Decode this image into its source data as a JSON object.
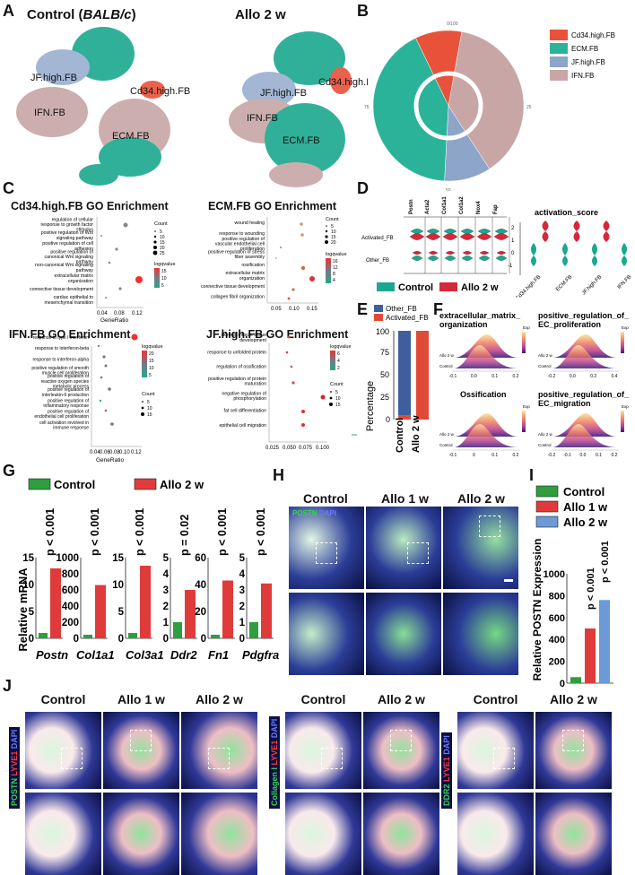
{
  "panels": {
    "A": {
      "label": "A",
      "control_title": "Control (BALB/c)",
      "allo_title": "Allo 2 w",
      "clusters": [
        "JF.high.FB",
        "Cd34.high.FB",
        "IFN.FB",
        "ECM.FB"
      ]
    },
    "B": {
      "label": "B",
      "legend": [
        "Cd34.high.FB",
        "ECM.FB",
        "JF.high.FB",
        "IFN.FB"
      ],
      "colors": [
        "#e8523a",
        "#2bb39a",
        "#8ca5c9",
        "#c8a6a6"
      ],
      "ticks": [
        "0/100",
        "25",
        "50",
        "75"
      ]
    },
    "C": {
      "label": "C",
      "cd34": {
        "title": "Cd34.high.FB GO Enrichment",
        "terms": [
          "regulation of cellular response to growth factor stimulus",
          "positive regulation of Wnt signaling pathway",
          "positive regulation of cell adhesion",
          "positive regulation of canonical Wnt signaling pathway",
          "non-canonical Wnt signaling pathway",
          "extracellular matrix organization",
          "connective tissue development",
          "cardiac epithelial to mesenchymal transition"
        ],
        "xticks": [
          "0.04",
          "0.08",
          "0.12"
        ],
        "xlabel": "GeneRatio",
        "count_title": "Count",
        "counts": [
          "5",
          "10",
          "15",
          "20",
          "25"
        ],
        "lq_title": "logqvalue",
        "lq": [
          "15",
          "10",
          "5"
        ]
      },
      "ecm": {
        "title": "ECM.FB GO Enrichment",
        "terms": [
          "wound healing",
          "response to wounding",
          "positive regulation of vascular endothelial cell proliferation",
          "positive regulation of stress fiber assembly",
          "ossification",
          "extracellular matrix organization",
          "connective tissue development",
          "collagen fibril organization"
        ],
        "xticks": [
          "0.05",
          "0.10",
          "0.15"
        ],
        "count_title": "Count",
        "counts": [
          "5",
          "10",
          "15",
          "20"
        ],
        "lq_title": "logqvalue",
        "lq": [
          "16",
          "12",
          "8",
          "4"
        ]
      },
      "ifn": {
        "title": "IFN.FB GO Enrichment",
        "terms": [
          "response to type I interferon",
          "response to interferon-beta",
          "response to interferon-alpha",
          "positive regulation of smooth muscle cell proliferation",
          "positive regulation of reactive oxygen species metabolic process",
          "positive regulation of interleukin-6 production",
          "positive regulation of inflammatory response",
          "positive regulation of endothelial cell proliferation",
          "cell activation involved in immune response"
        ],
        "xticks": [
          "0.04",
          "0.06",
          "0.08",
          "0.10",
          "0.12"
        ],
        "xlabel": "GeneRatio",
        "lq_title": "logqvalue",
        "lq": [
          "20",
          "15",
          "10",
          "5"
        ],
        "count_title": "Count",
        "counts": [
          "5",
          "10",
          "15"
        ]
      },
      "jf": {
        "title": "JF.high.FB GO Enrichment",
        "terms": [
          "skeletal muscle tissue development",
          "response to unfolded protein",
          "regulation of ossification",
          "positive regulation of protein maturation",
          "negative regulation of phosphorylation",
          "fat cell differentiation",
          "epithelial cell migration"
        ],
        "xticks": [
          "0.025",
          "0.050",
          "0.075",
          "0.100"
        ],
        "lq_title": "logqvalue",
        "lq": [
          "6",
          "4",
          "2"
        ],
        "count_title": "Count",
        "counts": [
          "5",
          "10",
          "15"
        ]
      }
    },
    "D": {
      "label": "D",
      "genes": [
        "Postn",
        "Acta2",
        "Col1a1",
        "Col1a2",
        "Nox4",
        "Fap"
      ],
      "rows": [
        "Activated_FB",
        "Other_FB"
      ],
      "score_title": "activation_score",
      "score_y": [
        "2",
        "1",
        "0",
        "-1"
      ],
      "score_x": [
        "Cd34.high.FB",
        "ECM.FB",
        "JF.high.FB",
        "IFN.FB"
      ],
      "legend": [
        "Control",
        "Allo 2 w"
      ]
    },
    "E": {
      "label": "E",
      "legend": [
        "Other_FB",
        "Activated_FB"
      ],
      "ylabel": "Percentage",
      "yticks": [
        "100",
        "75",
        "50",
        "25",
        "0"
      ],
      "x": [
        "Control",
        "Allo 2 w"
      ],
      "chart_data": {
        "type": "bar",
        "categories": [
          "Control",
          "Allo 2 w"
        ],
        "series": [
          {
            "name": "Other_FB",
            "values": [
              95,
              0
            ]
          },
          {
            "name": "Activated_FB",
            "values": [
              5,
              100
            ]
          }
        ],
        "ylabel": "Percentage",
        "ylim": [
          0,
          100
        ]
      }
    },
    "F": {
      "label": "F",
      "titles": [
        "extracellular_matrix_organization",
        "positive_regulation_of_EC_proliferation",
        "Ossification",
        "positive_regulation_of_EC_migration"
      ],
      "rows": [
        "Allo 2 w",
        "Control"
      ],
      "xticks_a": [
        "-0.1",
        "0.0",
        "0.1",
        "0.2"
      ],
      "xticks_b": [
        "-0.2",
        "0.0",
        "0.2",
        "0.4"
      ],
      "xticks_c": [
        "-0.1",
        "0",
        "0.1",
        "0.2"
      ],
      "xticks_d": [
        "-0.2",
        "-0.1",
        "0.0",
        "0.1",
        "0.2"
      ],
      "legend_title": "Exp"
    },
    "G": {
      "label": "G",
      "legend": [
        "Control",
        "Allo 2 w"
      ],
      "ylabel": "Relative mRNA",
      "genes": [
        "Postn",
        "Col1a1",
        "Col3a1",
        "Ddr2",
        "Fn1",
        "Pdgfra"
      ],
      "pvals": [
        "p < 0.001",
        "p < 0.001",
        "p < 0.001",
        "p = 0.02",
        "p < 0.001",
        "p < 0.001"
      ],
      "yticks": [
        [
          "15",
          "10",
          "5",
          "0"
        ],
        [
          "1000",
          "800",
          "600",
          "400",
          "200",
          "0"
        ],
        [
          "15",
          "10",
          "5",
          "0"
        ],
        [
          "5",
          "4",
          "3",
          "2",
          "1",
          "0"
        ],
        [
          "60",
          "40",
          "20",
          "0"
        ],
        [
          "5",
          "4",
          "3",
          "2",
          "1",
          "0"
        ]
      ],
      "chart_data": {
        "type": "bar",
        "categories": [
          "Postn",
          "Col1a1",
          "Col3a1",
          "Ddr2",
          "Fn1",
          "Pdgfra"
        ],
        "series": [
          {
            "name": "Control",
            "values": [
              1,
              1,
              1,
              1,
              1,
              1
            ]
          },
          {
            "name": "Allo 2 w",
            "values": [
              13,
              660,
              13.5,
              3,
              43,
              3.4
            ]
          }
        ],
        "ylabel": "Relative mRNA"
      }
    },
    "H": {
      "label": "H",
      "cols": [
        "Control",
        "Allo 1 w",
        "Allo 2 w"
      ],
      "stain": "POSTN DAPI"
    },
    "I": {
      "label": "I",
      "legend": [
        "Control",
        "Allo 1 w",
        "Allo 2 w"
      ],
      "ylabel": "Relative POSTN Expression",
      "yticks": [
        "1000",
        "800",
        "600",
        "400",
        "200",
        "0"
      ],
      "pvals": [
        "p < 0.001",
        "p < 0.001"
      ],
      "chart_data": {
        "type": "bar",
        "categories": [
          "Control",
          "Allo 1 w",
          "Allo 2 w"
        ],
        "values": [
          55,
          500,
          760
        ],
        "ylabel": "Relative POSTN Expression",
        "ylim": [
          0,
          1000
        ]
      }
    },
    "J": {
      "label": "J",
      "groups": [
        {
          "cols": [
            "Control",
            "Allo 1 w",
            "Allo 2 w"
          ],
          "stain": "POSTN LYVE1 DAPI"
        },
        {
          "cols": [
            "Control",
            "Allo 2 w"
          ],
          "stain": "Collagen I LYVE1 DAPI"
        },
        {
          "cols": [
            "Control",
            "Allo 2 w"
          ],
          "stain": "DDR2 LYVE1 DAPI"
        }
      ]
    }
  },
  "colors": {
    "control_green": "#2e9e3e",
    "allo_red": "#e03b3b",
    "allo_blue": "#6b9ad6",
    "teal": "#1aa88e",
    "crimson": "#d4283c"
  }
}
